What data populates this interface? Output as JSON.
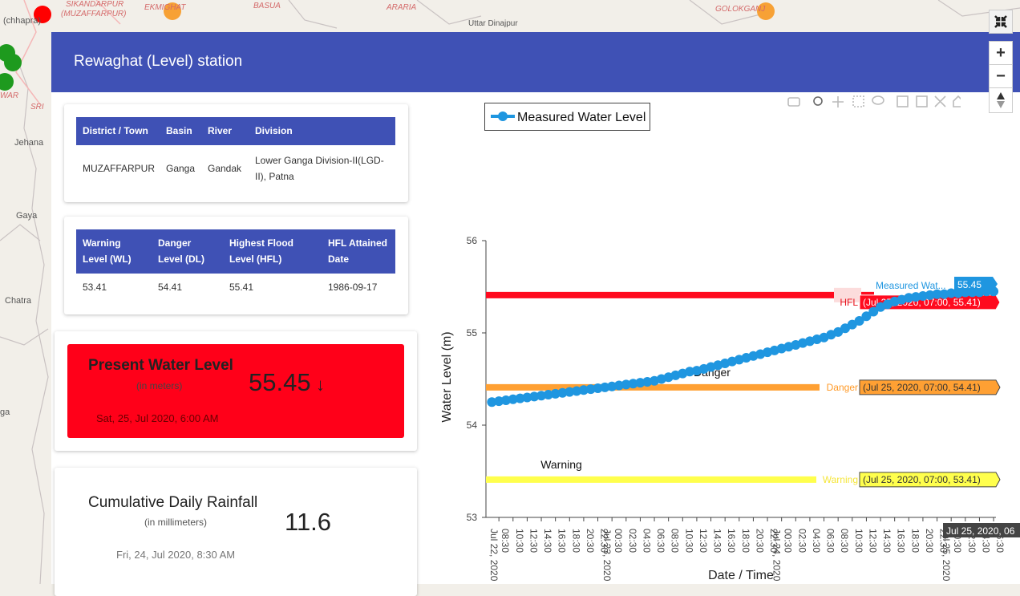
{
  "map": {
    "labels": [
      "SIKANDARPUR",
      "(MUZAFFARPUR)",
      "EKMIGHAT",
      "BASUA",
      "ARARIA",
      "GOLOKGANJ",
      "Uttar Dinajpur",
      "(chhapra)",
      "WAR",
      "SRI",
      "Jehana",
      "Gaya",
      "Chatra",
      "ga"
    ],
    "zoom_in": "+",
    "zoom_out": "−"
  },
  "header": {
    "title": "Rewaghat (Level) station"
  },
  "station_table": {
    "columns": [
      "District / Town",
      "Basin",
      "River",
      "Division"
    ],
    "rows": [
      [
        "MUZAFFARPUR",
        "Ganga",
        "Gandak",
        "Lower Ganga Division-II(LGD-II), Patna"
      ]
    ]
  },
  "levels_table": {
    "columns": [
      "Warning Level (WL)",
      "Danger Level (DL)",
      "Highest Flood Level (HFL)",
      "HFL Attained Date"
    ],
    "rows": [
      [
        "53.41",
        "54.41",
        "55.41",
        "1986-09-17"
      ]
    ]
  },
  "present_level": {
    "title": "Present Water Level",
    "unit": "(in meters)",
    "value": "55.45",
    "trend": "↓",
    "time": "Sat, 25, Jul 2020, 6:00 AM"
  },
  "rainfall": {
    "title": "Cumulative Daily Rainfall",
    "unit": "(in millimeters)",
    "value": "11.6",
    "time": "Fri, 24, Jul 2020, 8:30 AM"
  },
  "chart_data": {
    "type": "line",
    "x_label": "Date / Time",
    "y_label": "Water Level (m)",
    "xlim": [
      "2020-07-22 06:40",
      "2020-07-25 06:50"
    ],
    "ylim": [
      53,
      56
    ],
    "yticks": [
      53,
      54,
      55,
      56
    ],
    "xticks": [
      {
        "value": "2020-07-22 08:30",
        "label": "08:30"
      },
      {
        "value": "2020-07-22 10:30",
        "label": "10:30"
      },
      {
        "value": "2020-07-22 12:30",
        "label": "12:30"
      },
      {
        "value": "2020-07-22 14:30",
        "label": "14:30"
      },
      {
        "value": "2020-07-22 16:30",
        "label": "16:30"
      },
      {
        "value": "2020-07-22 18:30",
        "label": "18:30"
      },
      {
        "value": "2020-07-22 20:30",
        "label": "20:30"
      },
      {
        "value": "2020-07-22 22:30",
        "label": "22:30"
      },
      {
        "value": "2020-07-23 00:30",
        "label": "00:30"
      },
      {
        "value": "2020-07-23 02:30",
        "label": "02:30"
      },
      {
        "value": "2020-07-23 04:30",
        "label": "04:30"
      },
      {
        "value": "2020-07-23 06:30",
        "label": "06:30"
      },
      {
        "value": "2020-07-23 08:30",
        "label": "08:30"
      },
      {
        "value": "2020-07-23 10:30",
        "label": "10:30"
      },
      {
        "value": "2020-07-23 12:30",
        "label": "12:30"
      },
      {
        "value": "2020-07-23 14:30",
        "label": "14:30"
      },
      {
        "value": "2020-07-23 16:30",
        "label": "16:30"
      },
      {
        "value": "2020-07-23 18:30",
        "label": "18:30"
      },
      {
        "value": "2020-07-23 20:30",
        "label": "20:30"
      },
      {
        "value": "2020-07-23 22:30",
        "label": "22:30"
      },
      {
        "value": "2020-07-24 00:30",
        "label": "00:30"
      },
      {
        "value": "2020-07-24 02:30",
        "label": "02:30"
      },
      {
        "value": "2020-07-24 04:30",
        "label": "04:30"
      },
      {
        "value": "2020-07-24 06:30",
        "label": "06:30"
      },
      {
        "value": "2020-07-24 08:30",
        "label": "08:30"
      },
      {
        "value": "2020-07-24 10:30",
        "label": "10:30"
      },
      {
        "value": "2020-07-24 12:30",
        "label": "12:30"
      },
      {
        "value": "2020-07-24 14:30",
        "label": "14:30"
      },
      {
        "value": "2020-07-24 16:30",
        "label": "16:30"
      },
      {
        "value": "2020-07-24 18:30",
        "label": "18:30"
      },
      {
        "value": "2020-07-24 20:30",
        "label": "20:30"
      },
      {
        "value": "2020-07-24 22:30",
        "label": "22:30"
      },
      {
        "value": "2020-07-25 00:30",
        "label": "00:30"
      },
      {
        "value": "2020-07-25 02:30",
        "label": "02:30"
      },
      {
        "value": "2020-07-25 04:30",
        "label": "04:30"
      },
      {
        "value": "2020-07-25 06:30",
        "label": "06:30"
      }
    ],
    "date_labels": [
      {
        "value": "2020-07-22 08:30",
        "label": "Jul 22, 2020"
      },
      {
        "value": "2020-07-23 00:30",
        "label": "Jul 23, 2020"
      },
      {
        "value": "2020-07-24 00:30",
        "label": "Jul 24, 2020"
      },
      {
        "value": "2020-07-25 00:30",
        "label": "Jul 25, 2020"
      }
    ],
    "x": [
      "2020-07-22 07:30",
      "2020-07-22 08:30",
      "2020-07-22 09:30",
      "2020-07-22 10:30",
      "2020-07-22 11:30",
      "2020-07-22 12:30",
      "2020-07-22 13:30",
      "2020-07-22 14:30",
      "2020-07-22 15:30",
      "2020-07-22 16:30",
      "2020-07-22 17:30",
      "2020-07-22 18:30",
      "2020-07-22 19:30",
      "2020-07-22 20:30",
      "2020-07-22 21:30",
      "2020-07-22 22:30",
      "2020-07-22 23:30",
      "2020-07-23 00:30",
      "2020-07-23 01:30",
      "2020-07-23 02:30",
      "2020-07-23 03:30",
      "2020-07-23 04:30",
      "2020-07-23 05:30",
      "2020-07-23 06:30",
      "2020-07-23 07:30",
      "2020-07-23 08:30",
      "2020-07-23 09:30",
      "2020-07-23 10:30",
      "2020-07-23 11:30",
      "2020-07-23 12:30",
      "2020-07-23 13:30",
      "2020-07-23 14:30",
      "2020-07-23 15:30",
      "2020-07-23 16:30",
      "2020-07-23 17:30",
      "2020-07-23 18:30",
      "2020-07-23 19:30",
      "2020-07-23 20:30",
      "2020-07-23 21:30",
      "2020-07-23 22:30",
      "2020-07-23 23:30",
      "2020-07-24 00:30",
      "2020-07-24 01:30",
      "2020-07-24 02:30",
      "2020-07-24 03:30",
      "2020-07-24 04:30",
      "2020-07-24 05:30",
      "2020-07-24 06:30",
      "2020-07-24 07:30",
      "2020-07-24 08:30",
      "2020-07-24 09:30",
      "2020-07-24 10:30",
      "2020-07-24 11:30",
      "2020-07-24 12:30",
      "2020-07-24 13:30",
      "2020-07-24 14:30",
      "2020-07-24 15:30",
      "2020-07-24 16:30",
      "2020-07-24 17:30",
      "2020-07-24 18:30",
      "2020-07-24 19:30",
      "2020-07-24 20:30",
      "2020-07-24 21:30",
      "2020-07-24 22:30",
      "2020-07-24 23:30",
      "2020-07-25 00:30",
      "2020-07-25 01:30",
      "2020-07-25 02:30",
      "2020-07-25 03:30",
      "2020-07-25 04:30",
      "2020-07-25 05:30",
      "2020-07-25 06:30"
    ],
    "series": [
      {
        "name": "Measured Water Level",
        "color": "#1f96e0",
        "values": [
          54.25,
          54.26,
          54.27,
          54.28,
          54.29,
          54.3,
          54.31,
          54.32,
          54.33,
          54.34,
          54.35,
          54.36,
          54.37,
          54.38,
          54.39,
          54.4,
          54.41,
          54.42,
          54.43,
          54.44,
          54.45,
          54.46,
          54.47,
          54.48,
          54.5,
          54.52,
          54.54,
          54.56,
          54.58,
          54.59,
          54.61,
          54.63,
          54.65,
          54.67,
          54.69,
          54.71,
          54.73,
          54.75,
          54.77,
          54.79,
          54.81,
          54.83,
          54.85,
          54.87,
          54.89,
          54.91,
          54.93,
          54.95,
          54.98,
          55.01,
          55.05,
          55.09,
          55.13,
          55.18,
          55.23,
          55.28,
          55.31,
          55.34,
          55.36,
          55.38,
          55.39,
          55.4,
          55.41,
          55.42,
          55.42,
          55.43,
          55.43,
          55.44,
          55.44,
          55.44,
          55.45,
          55.45
        ]
      }
    ],
    "thresholds": [
      {
        "name": "HFL",
        "value": 55.41,
        "color": "#ff0a1e",
        "hover": "(Jul 25, 2020, 07:00, 55.41)"
      },
      {
        "name": "Danger",
        "value": 54.41,
        "color": "#ffa033",
        "hover": "(Jul 25, 2020, 07:00, 54.41)"
      },
      {
        "name": "Warning",
        "value": 53.41,
        "color": "#ffff4d",
        "hover": "(Jul 25, 2020, 07:00, 53.41)"
      }
    ],
    "hover": {
      "series_name": "Measured Wat...",
      "value": "55.45",
      "x_label": "Jul 25, 2020, 06"
    }
  }
}
